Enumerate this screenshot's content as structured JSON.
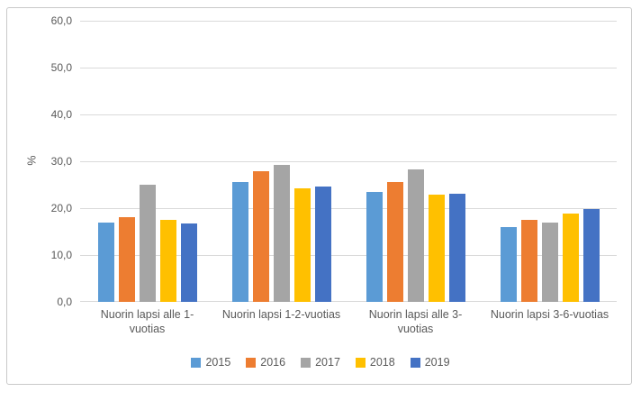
{
  "figure": {
    "background": "#FFFFFF",
    "border_color": "#C9C9C9",
    "gridline_color": "#D9D9D9",
    "text_color": "#595959"
  },
  "chart_data": {
    "type": "bar",
    "title": "",
    "xlabel": "",
    "ylabel": "%",
    "ylim": [
      0,
      60
    ],
    "ytick_step": 10,
    "ytick_labels": [
      "0,0",
      "10,0",
      "20,0",
      "30,0",
      "40,0",
      "50,0",
      "60,0"
    ],
    "grid": true,
    "legend_position": "bottom",
    "categories": [
      "Nuorin lapsi alle 1-vuotias",
      "Nuorin lapsi 1-2-vuotias",
      "Nuorin lapsi alle 3-vuotias",
      "Nuorin lapsi 3-6-vuotias"
    ],
    "category_label_lines": [
      [
        "Nuorin lapsi alle 1-",
        "vuotias"
      ],
      [
        "Nuorin lapsi 1-2-vuotias"
      ],
      [
        "Nuorin lapsi alle 3-",
        "vuotias"
      ],
      [
        "Nuorin lapsi 3-6-vuotias"
      ]
    ],
    "series": [
      {
        "name": "2015",
        "color": "#5B9BD5",
        "values": [
          17.0,
          25.5,
          23.4,
          16.0
        ]
      },
      {
        "name": "2016",
        "color": "#ED7D31",
        "values": [
          18.0,
          27.9,
          25.5,
          17.5
        ]
      },
      {
        "name": "2017",
        "color": "#A5A5A5",
        "values": [
          25.1,
          29.3,
          28.3,
          17.0
        ]
      },
      {
        "name": "2018",
        "color": "#FFC000",
        "values": [
          17.6,
          24.2,
          22.8,
          18.9
        ]
      },
      {
        "name": "2019",
        "color": "#4472C4",
        "values": [
          16.8,
          24.6,
          23.1,
          19.8
        ]
      }
    ]
  }
}
